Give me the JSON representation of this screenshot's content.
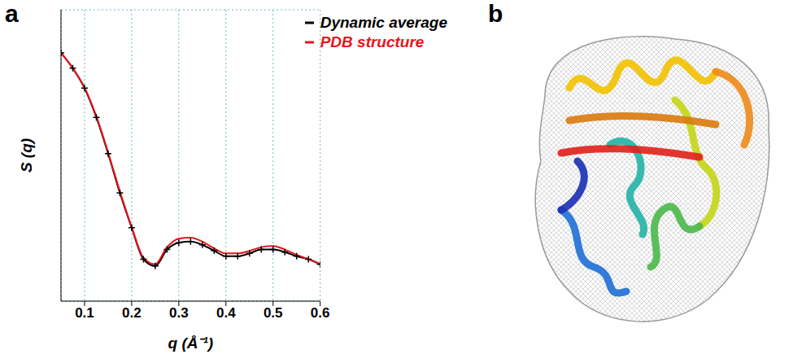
{
  "panel_labels": [
    "a",
    "b"
  ],
  "chart_data": {
    "type": "line",
    "xlabel": "q (Å⁻¹)",
    "ylabel": "S (q)",
    "x": [
      0.05,
      0.075,
      0.1,
      0.125,
      0.15,
      0.175,
      0.2,
      0.225,
      0.25,
      0.275,
      0.3,
      0.325,
      0.35,
      0.375,
      0.4,
      0.425,
      0.45,
      0.475,
      0.5,
      0.525,
      0.55,
      0.575,
      0.6
    ],
    "series": [
      {
        "name": "Dynamic average",
        "color": "#000000",
        "marker": "plus",
        "line_style": "solid",
        "values": [
          0.36,
          0.25,
          0.156,
          0.078,
          0.033,
          0.013,
          0.0057,
          0.0027,
          0.0023,
          0.0034,
          0.004,
          0.0041,
          0.0038,
          0.0033,
          0.0029,
          0.0029,
          0.0031,
          0.0034,
          0.0034,
          0.0032,
          0.0029,
          0.0027,
          0.0024
        ]
      },
      {
        "name": "PDB structure",
        "color": "#e8141c",
        "marker": "none",
        "line_style": "solid",
        "values": [
          0.36,
          0.25,
          0.158,
          0.08,
          0.034,
          0.0135,
          0.0058,
          0.0028,
          0.0024,
          0.0036,
          0.0044,
          0.0045,
          0.0041,
          0.0035,
          0.0031,
          0.0031,
          0.0033,
          0.0036,
          0.0037,
          0.0034,
          0.003,
          0.0027,
          0.0024
        ]
      }
    ],
    "xlim": [
      0.05,
      0.6
    ],
    "xticks": [
      0.1,
      0.2,
      0.3,
      0.4,
      0.5,
      0.6
    ],
    "ylim": [
      0.001,
      1
    ],
    "yticks": [
      0.001,
      0.01,
      0.1,
      1
    ],
    "log": "y",
    "grid": true,
    "legend": "top right",
    "tick_labels": "x"
  }
}
